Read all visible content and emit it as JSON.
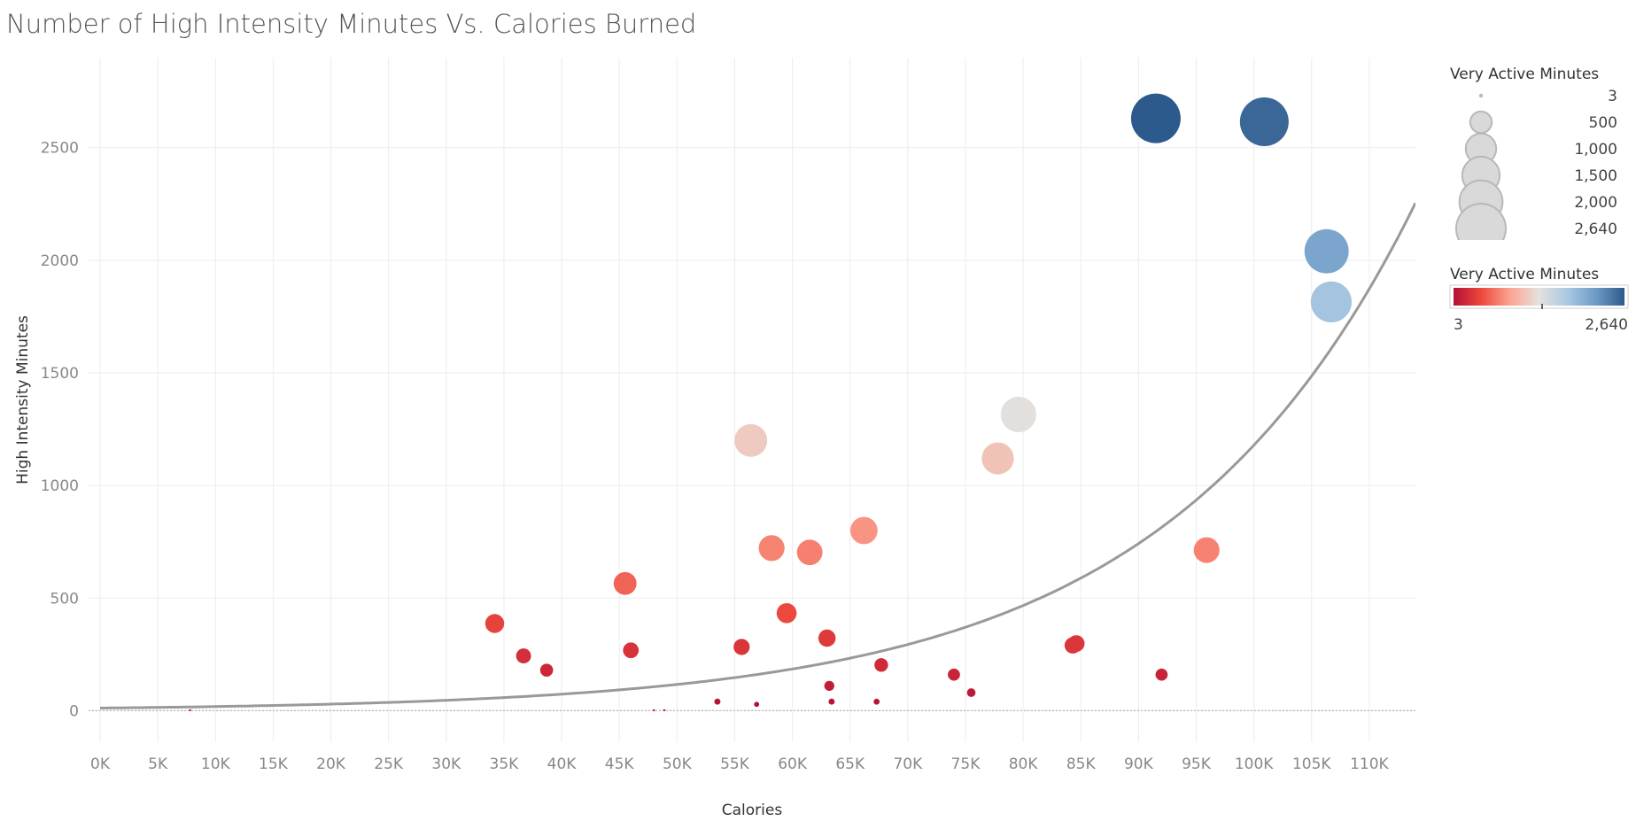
{
  "chart_data": {
    "type": "scatter",
    "title": "Number of High Intensity Minutes Vs. Calories Burned",
    "xlabel": "Calories",
    "ylabel": "High Intensity Minutes",
    "xlim": [
      -1000,
      114000
    ],
    "ylim": [
      -140,
      2900
    ],
    "x_ticks": [
      0,
      5000,
      10000,
      15000,
      20000,
      25000,
      30000,
      35000,
      40000,
      45000,
      50000,
      55000,
      60000,
      65000,
      70000,
      75000,
      80000,
      85000,
      90000,
      95000,
      100000,
      105000,
      110000
    ],
    "x_tick_labels": [
      "0K",
      "5K",
      "10K",
      "15K",
      "20K",
      "25K",
      "30K",
      "35K",
      "40K",
      "45K",
      "50K",
      "55K",
      "60K",
      "65K",
      "70K",
      "75K",
      "80K",
      "85K",
      "90K",
      "95K",
      "100K",
      "105K",
      "110K"
    ],
    "y_ticks": [
      0,
      500,
      1000,
      1500,
      2000,
      2500
    ],
    "y_tick_labels": [
      "0",
      "500",
      "1000",
      "1500",
      "2000",
      "2500"
    ],
    "grid": true,
    "trend_line": {
      "type": "exponential",
      "a": 11.5,
      "b": 4.63e-05
    },
    "points": [
      {
        "x": 91500,
        "y": 2630,
        "size": 2640
      },
      {
        "x": 100900,
        "y": 2615,
        "size": 2550
      },
      {
        "x": 106300,
        "y": 2040,
        "size": 2100
      },
      {
        "x": 106700,
        "y": 1815,
        "size": 1800
      },
      {
        "x": 79600,
        "y": 1315,
        "size": 1350
      },
      {
        "x": 56400,
        "y": 1200,
        "size": 1150
      },
      {
        "x": 77800,
        "y": 1120,
        "size": 1100
      },
      {
        "x": 66200,
        "y": 800,
        "size": 800
      },
      {
        "x": 58200,
        "y": 722,
        "size": 720
      },
      {
        "x": 61500,
        "y": 703,
        "size": 700
      },
      {
        "x": 95900,
        "y": 713,
        "size": 710
      },
      {
        "x": 45500,
        "y": 565,
        "size": 560
      },
      {
        "x": 59500,
        "y": 433,
        "size": 430
      },
      {
        "x": 34200,
        "y": 387,
        "size": 385
      },
      {
        "x": 63000,
        "y": 322,
        "size": 320
      },
      {
        "x": 84600,
        "y": 298,
        "size": 300
      },
      {
        "x": 84300,
        "y": 290,
        "size": 288
      },
      {
        "x": 55600,
        "y": 283,
        "size": 280
      },
      {
        "x": 46000,
        "y": 268,
        "size": 265
      },
      {
        "x": 36700,
        "y": 243,
        "size": 240
      },
      {
        "x": 38700,
        "y": 180,
        "size": 180
      },
      {
        "x": 67700,
        "y": 203,
        "size": 200
      },
      {
        "x": 74000,
        "y": 160,
        "size": 158
      },
      {
        "x": 92000,
        "y": 160,
        "size": 158
      },
      {
        "x": 63200,
        "y": 110,
        "size": 108
      },
      {
        "x": 75500,
        "y": 80,
        "size": 80
      },
      {
        "x": 53500,
        "y": 40,
        "size": 40
      },
      {
        "x": 63400,
        "y": 40,
        "size": 40
      },
      {
        "x": 67300,
        "y": 40,
        "size": 38
      },
      {
        "x": 56900,
        "y": 28,
        "size": 28
      },
      {
        "x": 7800,
        "y": 2,
        "size": 3
      },
      {
        "x": 48000,
        "y": 2,
        "size": 3
      },
      {
        "x": 48900,
        "y": 2,
        "size": 3
      }
    ],
    "size_legend": {
      "title": "Very Active Minutes",
      "entries": [
        {
          "value": 3,
          "label": "3"
        },
        {
          "value": 500,
          "label": "500"
        },
        {
          "value": 1000,
          "label": "1,000"
        },
        {
          "value": 1500,
          "label": "1,500"
        },
        {
          "value": 2000,
          "label": "2,000"
        },
        {
          "value": 2640,
          "label": "2,640"
        }
      ]
    },
    "color_legend": {
      "title": "Very Active Minutes",
      "min": 3,
      "max": 2640,
      "min_label": "3",
      "max_label": "2,640",
      "stops": [
        "#b40f35",
        "#ee4b3e",
        "#fba592",
        "#e6e1dd",
        "#a9c8e2",
        "#6e9ac6",
        "#2d5a8c"
      ]
    },
    "colors": {
      "grid": "#ececec",
      "trend": "#999999",
      "zero_line": "#b8b8b8",
      "legend_bubble_fill": "#d9d9d9",
      "legend_bubble_stroke": "#b8b8b8"
    }
  }
}
